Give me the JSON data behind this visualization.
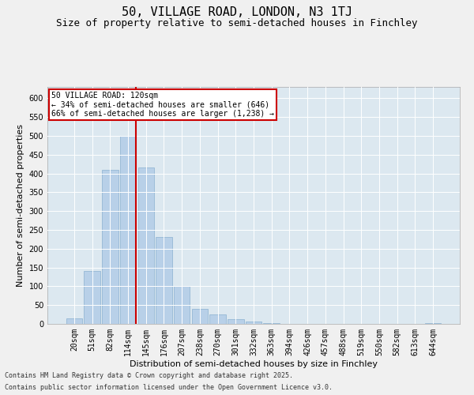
{
  "title_line1": "50, VILLAGE ROAD, LONDON, N3 1TJ",
  "title_line2": "Size of property relative to semi-detached houses in Finchley",
  "xlabel": "Distribution of semi-detached houses by size in Finchley",
  "ylabel": "Number of semi-detached properties",
  "categories": [
    "20sqm",
    "51sqm",
    "82sqm",
    "114sqm",
    "145sqm",
    "176sqm",
    "207sqm",
    "238sqm",
    "270sqm",
    "301sqm",
    "332sqm",
    "363sqm",
    "394sqm",
    "426sqm",
    "457sqm",
    "488sqm",
    "519sqm",
    "550sqm",
    "582sqm",
    "613sqm",
    "644sqm"
  ],
  "values": [
    15,
    140,
    410,
    500,
    415,
    230,
    100,
    40,
    25,
    13,
    7,
    3,
    1,
    0,
    0,
    0,
    0,
    0,
    0,
    0,
    2
  ],
  "bar_color": "#b8d0e8",
  "bar_edge_color": "#8ab0d0",
  "bg_color": "#dce8f0",
  "grid_color": "#ffffff",
  "fig_bg_color": "#f0f0f0",
  "vline_color": "#cc0000",
  "vline_x_index": 3,
  "annotation_title": "50 VILLAGE ROAD: 120sqm",
  "annotation_line1": "← 34% of semi-detached houses are smaller (646)",
  "annotation_line2": "66% of semi-detached houses are larger (1,238) →",
  "annotation_box_color": "#cc0000",
  "ylim": [
    0,
    630
  ],
  "yticks": [
    0,
    50,
    100,
    150,
    200,
    250,
    300,
    350,
    400,
    450,
    500,
    550,
    600
  ],
  "footnote1": "Contains HM Land Registry data © Crown copyright and database right 2025.",
  "footnote2": "Contains public sector information licensed under the Open Government Licence v3.0.",
  "title_fontsize": 11,
  "subtitle_fontsize": 9,
  "axis_label_fontsize": 8,
  "tick_fontsize": 7,
  "annotation_fontsize": 7,
  "footnote_fontsize": 6
}
